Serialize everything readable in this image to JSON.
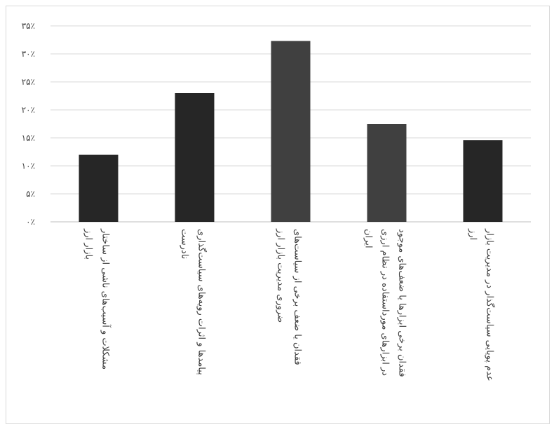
{
  "chart_data": {
    "type": "bar",
    "title": "",
    "xlabel": "",
    "ylabel": "",
    "ylim": [
      0,
      35
    ],
    "ytick_values": [
      0,
      5,
      10,
      15,
      20,
      25,
      30,
      35
    ],
    "ytick_labels": [
      "۰٪",
      "۵٪",
      "۱۰٪",
      "۱۵٪",
      "۲۰٪",
      "۲۵٪",
      "۳۰٪",
      "۳۵٪"
    ],
    "grid": true,
    "legend": "none",
    "unit": "%",
    "categories": [
      [
        "مشکلات و آسیب‌های ناشی از ساختار",
        "بازار ارز"
      ],
      [
        "پیامدها و اثرات رویه‌های سیاست‌گذاری",
        "نادرست"
      ],
      [
        "فقدان یا ضعف برخی از سیاست‌های",
        "ضروری مدیریت بازار ارز"
      ],
      [
        "فقدان برخی ابزارها یا ضعف‌های موجود",
        "در ابزارهای مورداستفاده در نظام ارزی",
        "ایران"
      ],
      [
        "عدم پویایی سیاست‌گذار در مدیریت بازار",
        "ارز"
      ]
    ],
    "values": [
      12,
      23,
      32.3,
      17.5,
      14.6
    ],
    "colors": [
      "#262626",
      "#262626",
      "#404040",
      "#404040",
      "#262626"
    ]
  }
}
